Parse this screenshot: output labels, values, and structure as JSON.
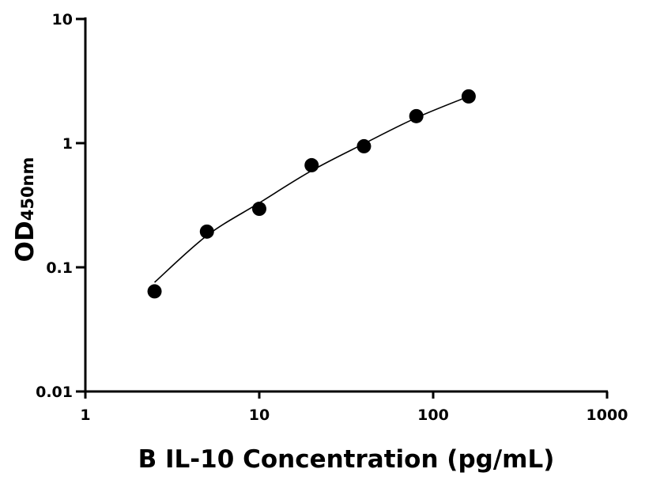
{
  "chart_data": {
    "type": "scatter",
    "xlabel": "B IL-10 Concentration (pg/mL)",
    "ylabel": "OD",
    "ylabel_subscript": "450nm",
    "xscale": "log",
    "yscale": "log",
    "xlim": [
      1,
      1000
    ],
    "xticks": [
      1,
      10,
      100,
      1000
    ],
    "ylim": [
      0.01,
      10
    ],
    "yticks": [
      0.01,
      0.1,
      1,
      10
    ],
    "series": [
      {
        "kind": "points",
        "color": "#000000",
        "x": [
          2.5,
          5,
          10,
          20,
          40,
          80,
          160
        ],
        "values": [
          0.064,
          0.194,
          0.296,
          0.664,
          0.944,
          1.65,
          2.38
        ]
      },
      {
        "kind": "curve",
        "color": "#000000",
        "x": [
          2.5,
          5,
          10,
          20,
          40,
          80,
          160
        ],
        "values": [
          0.0757,
          0.18,
          0.33,
          0.6,
          0.99,
          1.6,
          2.38
        ]
      }
    ]
  }
}
